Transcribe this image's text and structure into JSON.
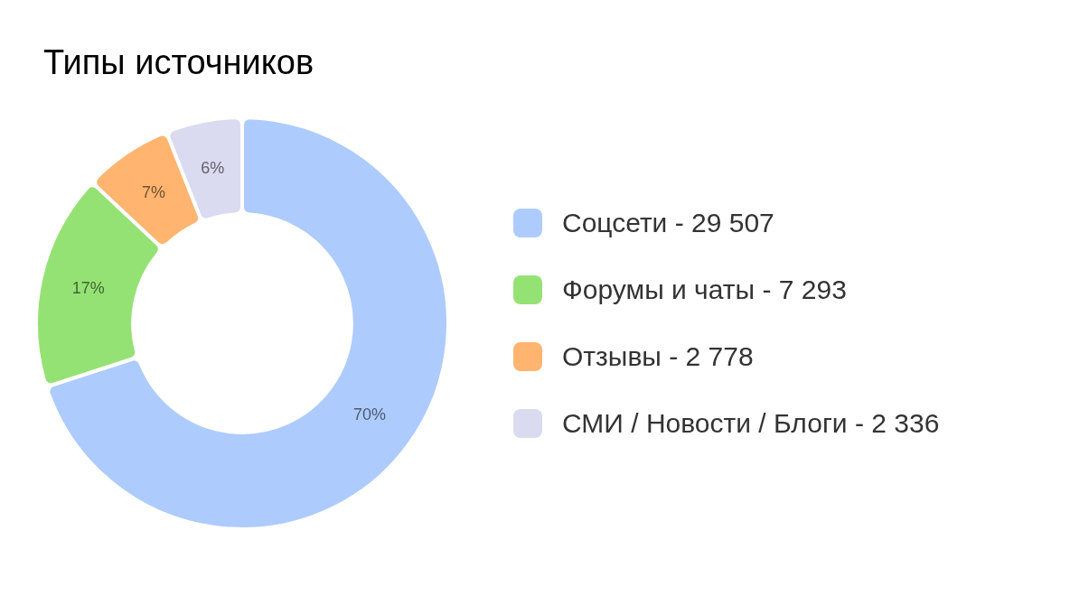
{
  "chart_data": {
    "type": "donut",
    "title": "Типы источников",
    "categories": [
      "Соцсети - 29 507",
      "Форумы и чаты - 7 293",
      "Отзывы - 2 778",
      "СМИ / Новости / Блоги - 2 336"
    ],
    "values": [
      70,
      17,
      7,
      6
    ],
    "value_labels": [
      "70%",
      "17%",
      "7%",
      "6%"
    ],
    "colors": [
      "#aecbfe",
      "#95e274",
      "#ffb570",
      "#dadaf0"
    ],
    "legend": "right"
  }
}
